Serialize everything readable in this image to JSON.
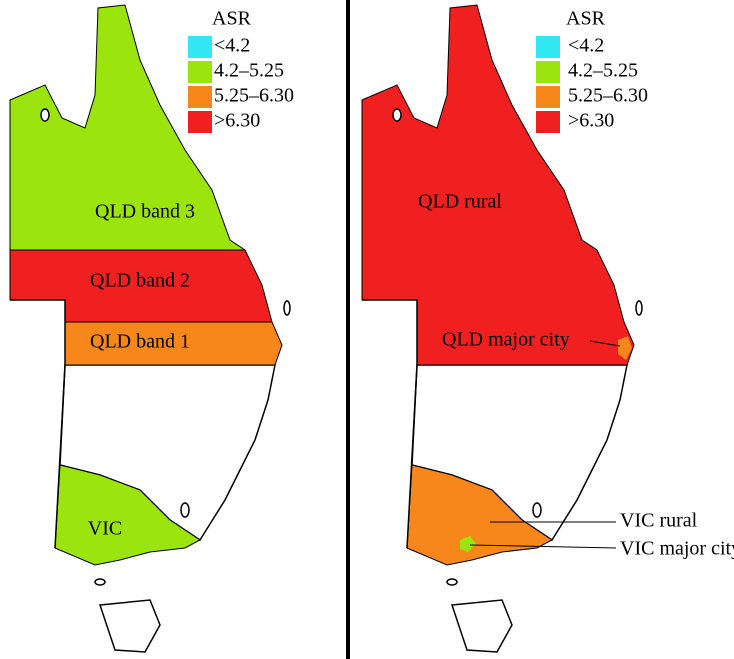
{
  "panels": [
    {
      "legend": {
        "title": "ASR",
        "items": [
          {
            "label": "<4.2",
            "color": "#33e8f2"
          },
          {
            "label": "4.2–5.25",
            "color": "#9be40e"
          },
          {
            "label": "5.25–6.30",
            "color": "#f7861b"
          },
          {
            "label": ">6.30",
            "color": "#f02020"
          }
        ]
      },
      "regions": [
        {
          "label": "QLD band 3",
          "color": "#9be40e"
        },
        {
          "label": "QLD band 2",
          "color": "#f02020"
        },
        {
          "label": "QLD band 1",
          "color": "#f7861b"
        },
        {
          "label": "VIC",
          "color": "#9be40e"
        }
      ]
    },
    {
      "legend": {
        "title": "ASR",
        "items": [
          {
            "label": "<4.2",
            "color": "#33e8f2"
          },
          {
            "label": "4.2–5.25",
            "color": "#9be40e"
          },
          {
            "label": "5.25–6.30",
            "color": "#f7861b"
          },
          {
            "label": ">6.30",
            "color": "#f02020"
          }
        ]
      },
      "regions": [
        {
          "label": "QLD rural",
          "color": "#f02020"
        },
        {
          "label": "QLD major city",
          "color": "#f7861b"
        },
        {
          "label": "VIC rural",
          "color": "#f7861b"
        },
        {
          "label": "VIC major city",
          "color": "#9be40e"
        }
      ]
    }
  ]
}
